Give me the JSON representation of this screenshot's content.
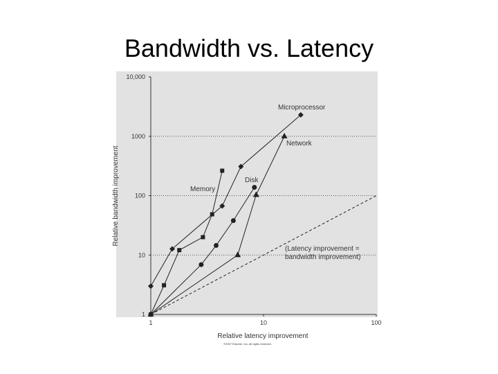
{
  "chart_data": {
    "type": "line",
    "title": "Bandwidth vs. Latency",
    "xlabel": "Relative latency improvement",
    "ylabel": "Relative bandwidth improvement",
    "credit": "©2007 Elsevier, Inc. All rights reserved.",
    "xscale": "log",
    "yscale": "log",
    "xlim": [
      1,
      100
    ],
    "ylim": [
      1,
      10000
    ],
    "xticks": [
      1,
      10,
      100
    ],
    "yticks": [
      1,
      10,
      100,
      1000,
      {
        "value": 10000,
        "label": "10,000"
      }
    ],
    "grid": true,
    "series": [
      {
        "name": "Microprocessor",
        "marker": "diamond",
        "color": "#222",
        "x": [
          1,
          1.55,
          4.3,
          6.3,
          21.4
        ],
        "values": [
          3,
          12.7,
          67,
          309,
          2290
        ]
      },
      {
        "name": "Memory",
        "marker": "square",
        "color": "#222",
        "x": [
          1,
          1.31,
          1.79,
          2.9,
          3.5,
          4.3
        ],
        "values": [
          1,
          3.1,
          12.1,
          20,
          48.5,
          263
        ]
      },
      {
        "name": "Disk",
        "marker": "circle",
        "color": "#222",
        "x": [
          1,
          2.8,
          3.8,
          5.4,
          8.3
        ],
        "values": [
          1,
          6.9,
          14.5,
          38,
          138
        ]
      },
      {
        "name": "Network",
        "marker": "triangle",
        "color": "#222",
        "x": [
          1,
          5.9,
          8.6,
          15.3
        ],
        "values": [
          1,
          10,
          103,
          1000
        ]
      },
      {
        "name": [
          "(Latency improvement =",
          "bandwidth improvement)"
        ],
        "marker": "none",
        "dashed": true,
        "color": "#222",
        "x": [
          1,
          100
        ],
        "values": [
          1,
          100
        ]
      }
    ]
  }
}
